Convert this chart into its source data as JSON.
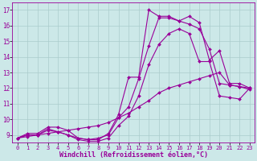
{
  "background_color": "#cce8e8",
  "grid_color": "#aacccc",
  "line_color": "#990099",
  "marker": "D",
  "marker_size": 2.0,
  "linewidth": 0.8,
  "xlabel": "Windchill (Refroidissement éolien,°C)",
  "xlabel_fontsize": 6,
  "xtick_fontsize": 5,
  "ytick_fontsize": 5.5,
  "xlim": [
    -0.5,
    23.5
  ],
  "ylim": [
    8.5,
    17.5
  ],
  "yticks": [
    9,
    10,
    11,
    12,
    13,
    14,
    15,
    16,
    17
  ],
  "xticks": [
    0,
    1,
    2,
    3,
    4,
    5,
    6,
    7,
    8,
    9,
    10,
    11,
    12,
    13,
    14,
    15,
    16,
    17,
    18,
    19,
    20,
    21,
    22,
    23
  ],
  "series": [
    [
      8.8,
      9.1,
      9.1,
      9.5,
      9.5,
      9.3,
      8.8,
      8.7,
      8.7,
      9.1,
      10.3,
      12.7,
      12.7,
      17.0,
      16.6,
      16.6,
      16.3,
      16.1,
      15.8,
      14.5,
      12.3,
      12.2,
      12.1,
      11.9
    ],
    [
      8.8,
      9.0,
      9.0,
      9.4,
      9.2,
      9.0,
      8.8,
      8.7,
      8.8,
      9.0,
      10.1,
      10.8,
      12.6,
      14.7,
      16.5,
      16.5,
      16.3,
      16.6,
      16.2,
      13.8,
      14.4,
      12.3,
      12.3,
      12.0
    ],
    [
      8.8,
      9.0,
      9.0,
      9.3,
      9.2,
      9.0,
      8.7,
      8.6,
      8.6,
      8.8,
      9.6,
      10.2,
      11.5,
      13.5,
      14.8,
      15.5,
      15.8,
      15.5,
      13.7,
      13.7,
      11.5,
      11.4,
      11.3,
      12.0
    ],
    [
      8.8,
      8.9,
      9.0,
      9.1,
      9.2,
      9.3,
      9.4,
      9.5,
      9.6,
      9.8,
      10.1,
      10.4,
      10.8,
      11.2,
      11.7,
      12.0,
      12.2,
      12.4,
      12.6,
      12.8,
      13.0,
      12.2,
      12.1,
      12.0
    ]
  ]
}
